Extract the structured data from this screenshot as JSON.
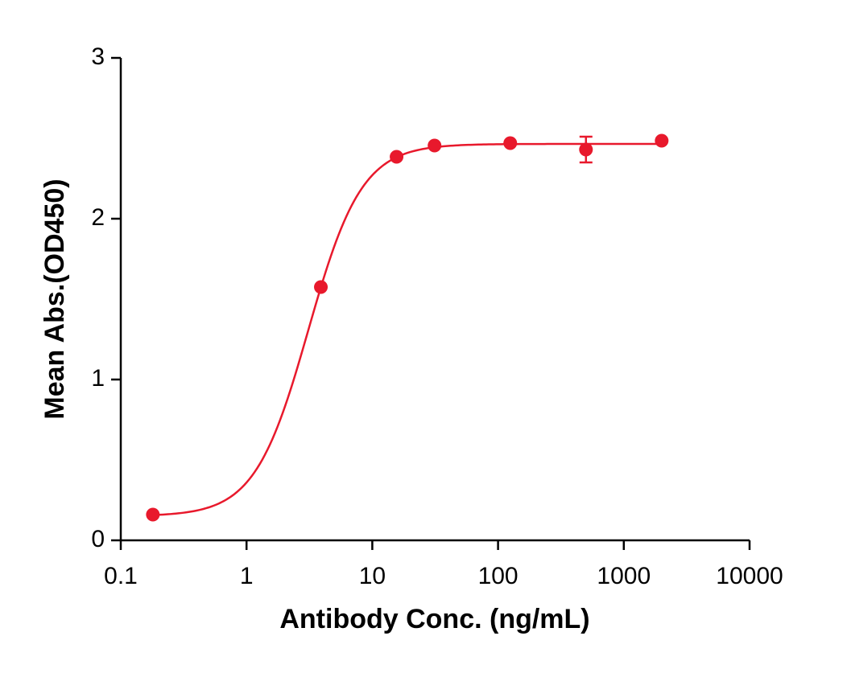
{
  "chart_data": {
    "type": "scatter",
    "x_label": "Antibody Conc. (ng/mL)",
    "y_label": "Mean Abs.(OD450)",
    "x_scale": "log",
    "xlim": [
      0.1,
      10000
    ],
    "xticks": [
      0.1,
      1,
      10,
      100,
      1000,
      10000
    ],
    "ylim": [
      0,
      3
    ],
    "yticks": [
      0,
      1,
      2,
      3
    ],
    "color": "#e8192c",
    "x": [
      0.18,
      3.9,
      15.6,
      31.25,
      125,
      500,
      2000
    ],
    "values": [
      0.16,
      1.575,
      2.385,
      2.455,
      2.47,
      2.43,
      2.485
    ],
    "errors": [
      null,
      null,
      null,
      null,
      null,
      0.08,
      null
    ],
    "fit": {
      "bottom": 0.15,
      "top": 2.465,
      "ec50": 3.1,
      "hill": 2.04
    }
  }
}
